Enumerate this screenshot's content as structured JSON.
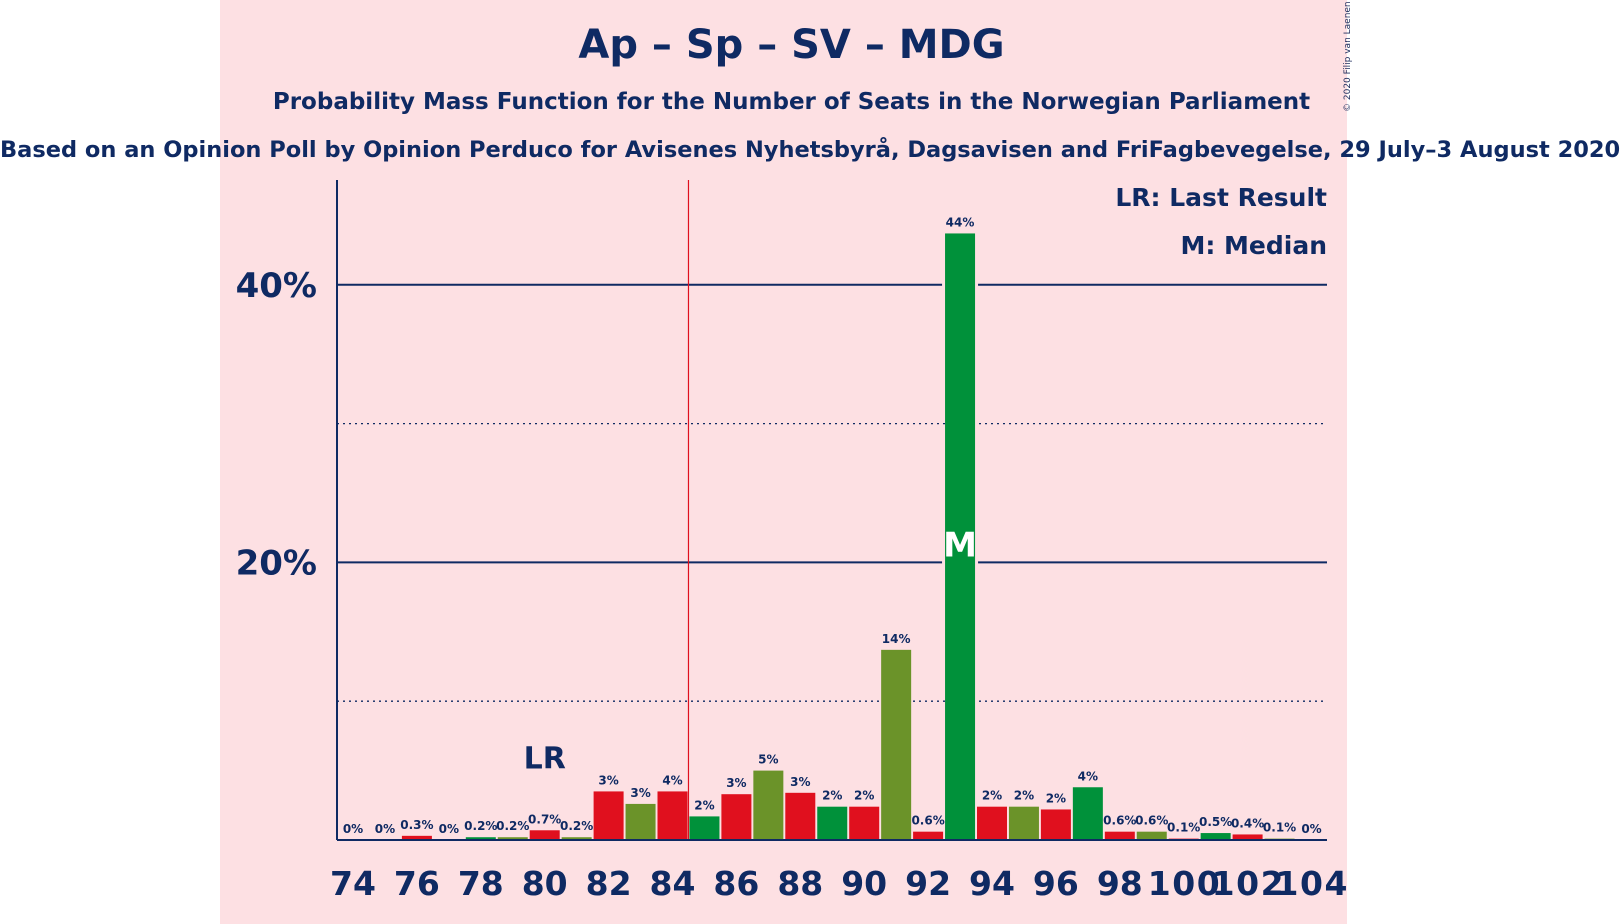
{
  "title": "Ap – Sp – SV – MDG",
  "subtitle": "Probability Mass Function for the Number of Seats in the Norwegian Parliament",
  "source": "Based on an Opinion Poll by Opinion Perduco for Avisenes Nyhetsbyrå, Dagsavisen and FriFagbevegelse, 29 July–3 August 2020",
  "copyright": "© 2020 Filip van Laenen",
  "legend": {
    "last_result": "LR: Last Result",
    "median": "M: Median"
  },
  "colors": {
    "red": "#e0101e",
    "olive": "#6b9329",
    "green": "#00913a",
    "navy": "#0f2a63",
    "background": "#fde0e3",
    "majority_line": "#e0101e"
  },
  "chart_data": {
    "type": "bar",
    "ylim": [
      0,
      47
    ],
    "xlim": [
      74,
      104
    ],
    "x_tick_labels": [
      "74",
      "76",
      "78",
      "80",
      "82",
      "84",
      "86",
      "88",
      "90",
      "92",
      "94",
      "96",
      "98",
      "100",
      "102",
      "104"
    ],
    "y_tick_labels": [
      {
        "value": 20,
        "label": "20%"
      },
      {
        "value": 40,
        "label": "40%"
      }
    ],
    "y_dotted_gridlines": [
      10,
      30
    ],
    "majority_threshold": 84.5,
    "last_result": {
      "seat": 80,
      "label": "LR"
    },
    "median": {
      "seat": 93,
      "label": "M"
    },
    "bars": [
      {
        "seat": 74,
        "value": 0,
        "label": "0%",
        "color": "green"
      },
      {
        "seat": 75,
        "value": 0,
        "label": "0%",
        "color": "olive"
      },
      {
        "seat": 76,
        "value": 0.3,
        "label": "0.3%",
        "color": "red"
      },
      {
        "seat": 77,
        "value": 0,
        "label": "0%",
        "color": "olive"
      },
      {
        "seat": 78,
        "value": 0.2,
        "label": "0.2%",
        "color": "green"
      },
      {
        "seat": 79,
        "value": 0.2,
        "label": "0.2%",
        "color": "olive"
      },
      {
        "seat": 80,
        "value": 0.7,
        "label": "0.7%",
        "color": "red"
      },
      {
        "seat": 81,
        "value": 0.2,
        "label": "0.2%",
        "color": "olive"
      },
      {
        "seat": 82,
        "value": 3.5,
        "label": "3%",
        "color": "red"
      },
      {
        "seat": 83,
        "value": 2.6,
        "label": "3%",
        "color": "olive"
      },
      {
        "seat": 84,
        "value": 3.5,
        "label": "4%",
        "color": "red"
      },
      {
        "seat": 85,
        "value": 1.7,
        "label": "2%",
        "color": "green"
      },
      {
        "seat": 86,
        "value": 3.3,
        "label": "3%",
        "color": "red"
      },
      {
        "seat": 87,
        "value": 5.0,
        "label": "5%",
        "color": "olive"
      },
      {
        "seat": 88,
        "value": 3.4,
        "label": "3%",
        "color": "red"
      },
      {
        "seat": 89,
        "value": 2.4,
        "label": "2%",
        "color": "green"
      },
      {
        "seat": 90,
        "value": 2.4,
        "label": "2%",
        "color": "red"
      },
      {
        "seat": 91,
        "value": 13.7,
        "label": "14%",
        "color": "olive"
      },
      {
        "seat": 92,
        "value": 0.6,
        "label": "0.6%",
        "color": "red"
      },
      {
        "seat": 93,
        "value": 43.7,
        "label": "44%",
        "color": "green"
      },
      {
        "seat": 94,
        "value": 2.4,
        "label": "2%",
        "color": "red"
      },
      {
        "seat": 95,
        "value": 2.4,
        "label": "2%",
        "color": "olive"
      },
      {
        "seat": 96,
        "value": 2.2,
        "label": "2%",
        "color": "red"
      },
      {
        "seat": 97,
        "value": 3.8,
        "label": "4%",
        "color": "green"
      },
      {
        "seat": 98,
        "value": 0.6,
        "label": "0.6%",
        "color": "red"
      },
      {
        "seat": 99,
        "value": 0.6,
        "label": "0.6%",
        "color": "olive"
      },
      {
        "seat": 100,
        "value": 0.1,
        "label": "0.1%",
        "color": "red"
      },
      {
        "seat": 101,
        "value": 0.5,
        "label": "0.5%",
        "color": "green"
      },
      {
        "seat": 102,
        "value": 0.4,
        "label": "0.4%",
        "color": "red"
      },
      {
        "seat": 103,
        "value": 0.1,
        "label": "0.1%",
        "color": "olive"
      },
      {
        "seat": 104,
        "value": 0,
        "label": "0%",
        "color": "green"
      }
    ]
  }
}
